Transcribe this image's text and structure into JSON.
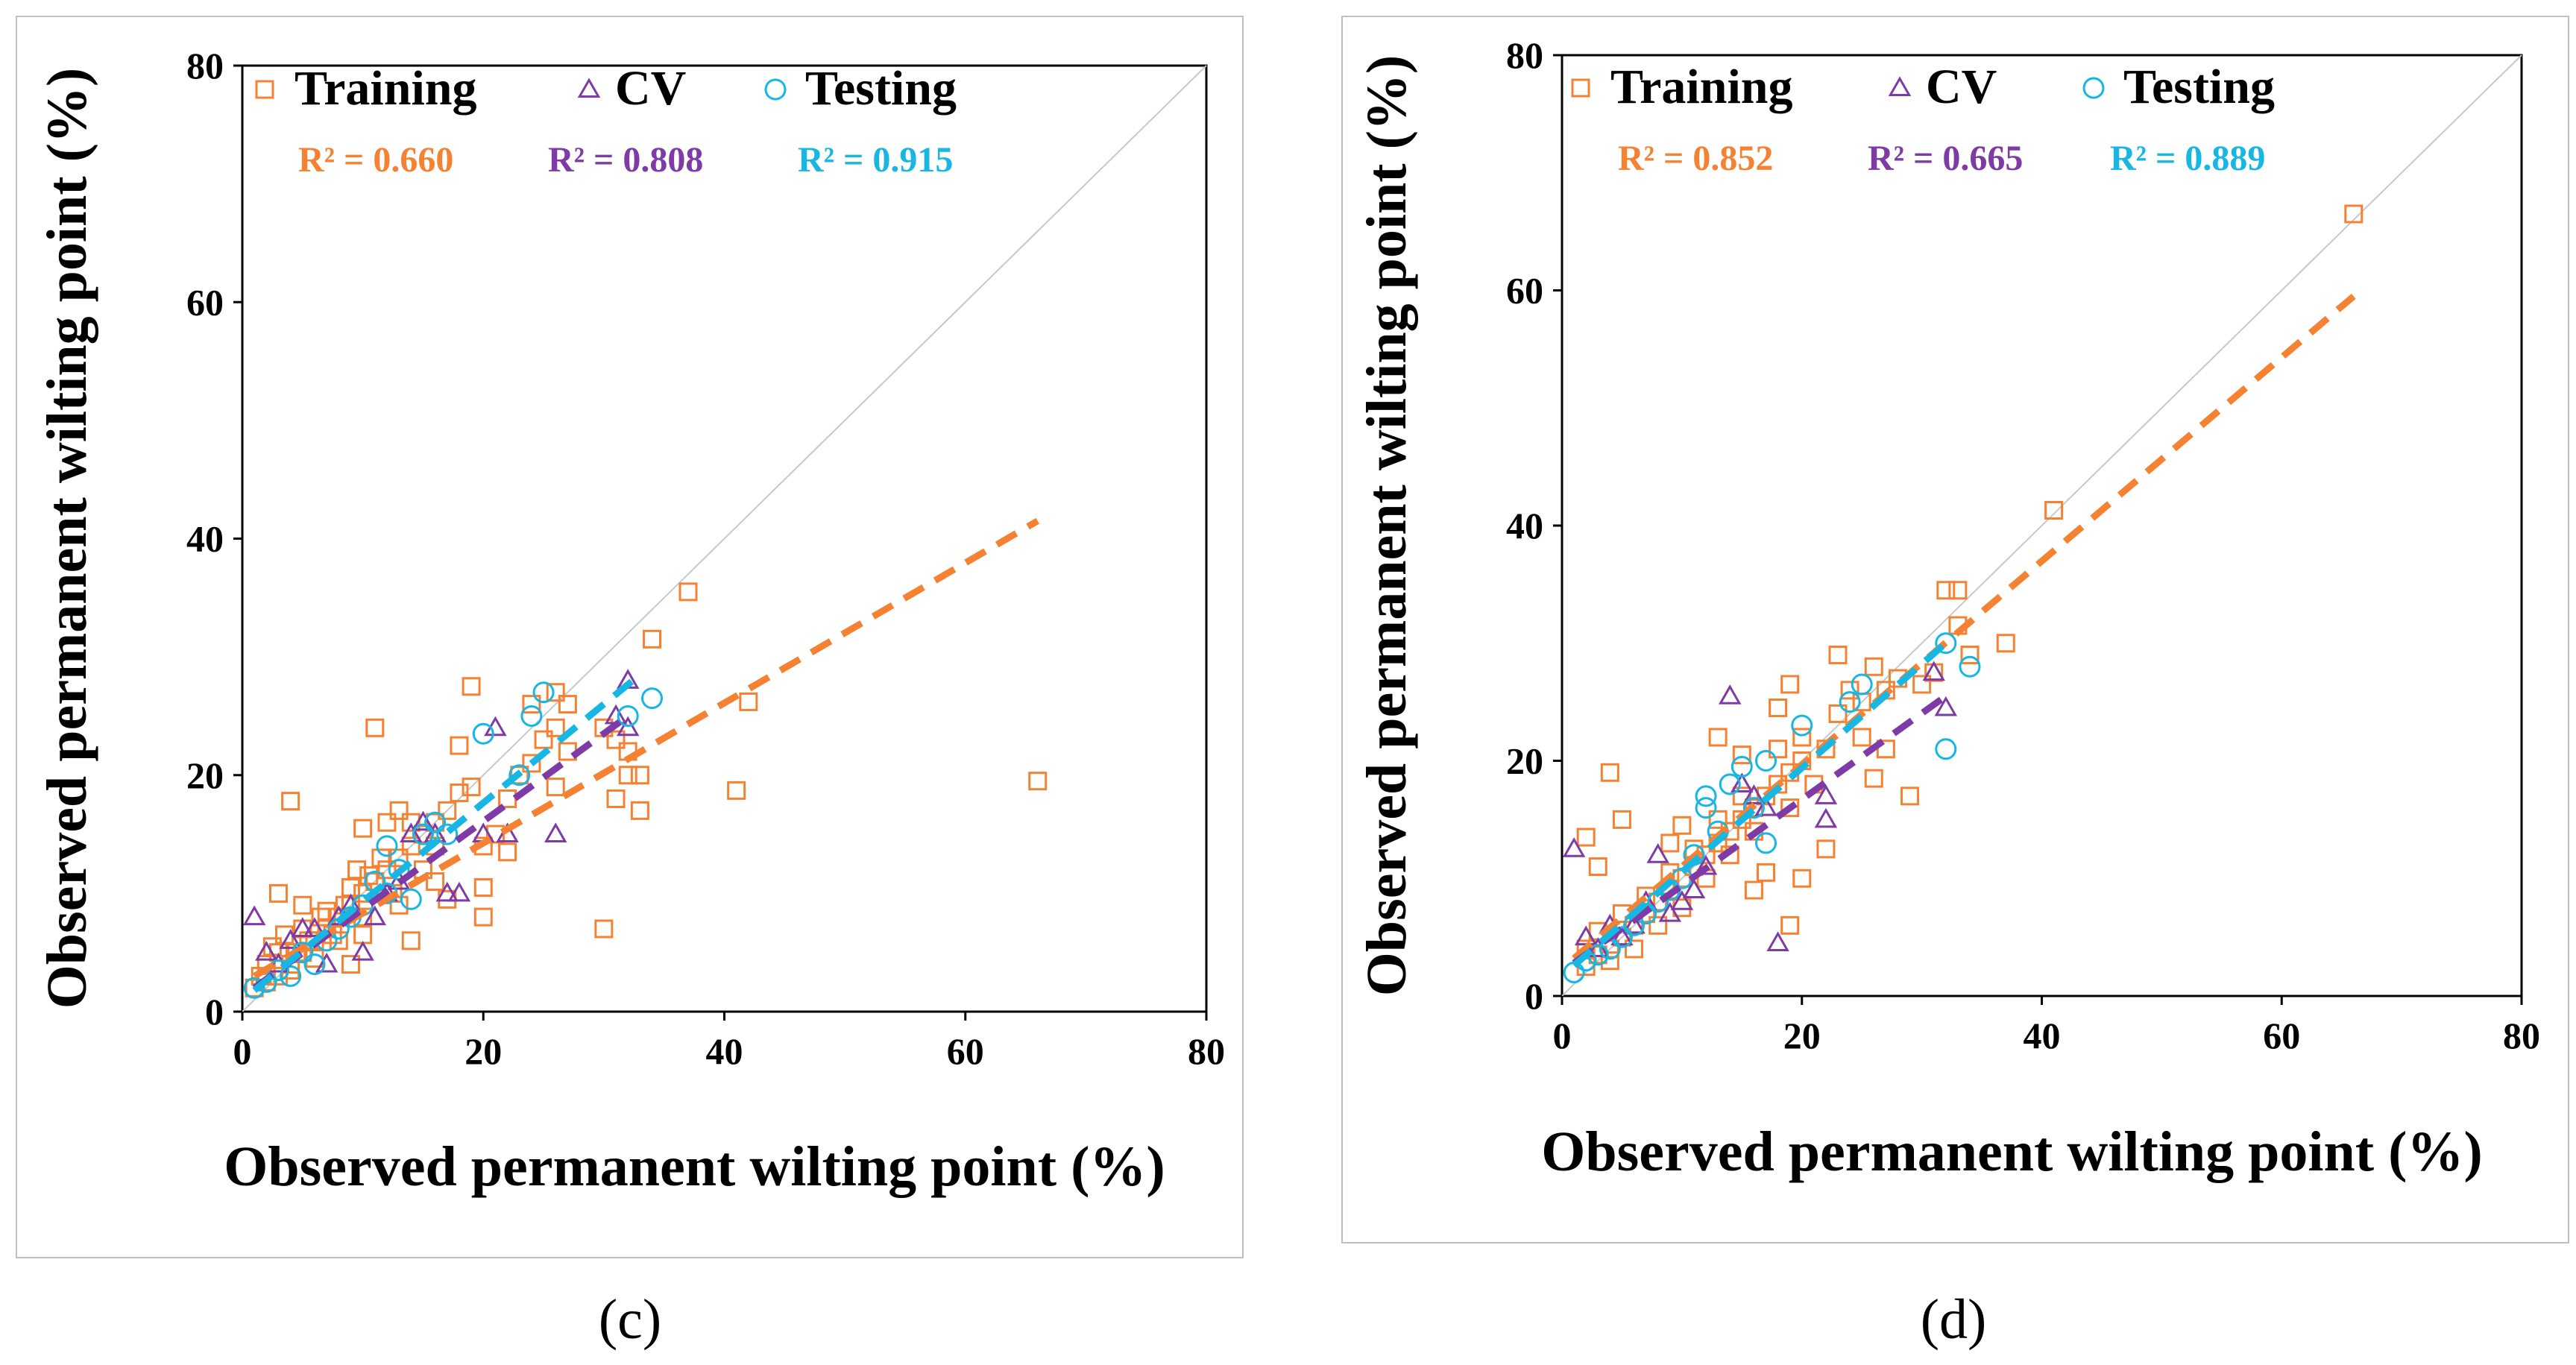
{
  "colors": {
    "training": "#F58232",
    "cv": "#7E3BA6",
    "testing": "#17B6E3",
    "identity": "#C8C8C8",
    "frame": "#BFBFBF"
  },
  "chart_data": [
    {
      "type": "scatter",
      "caption": "(c)",
      "xlabel": "Observed permanent wilting point (%)",
      "ylabel": "Observed permanent wilting point (%)",
      "xlim": [
        0,
        80
      ],
      "ylim": [
        0,
        80
      ],
      "xticks": [
        "0",
        "20",
        "40",
        "60",
        "80"
      ],
      "yticks": [
        "0",
        "20",
        "40",
        "60",
        "80"
      ],
      "legend": [
        "Training",
        "CV",
        "Testing"
      ],
      "r2_labels": [
        "R² = 0.660",
        "R² = 0.808",
        "R² = 0.915"
      ],
      "fits": [
        {
          "series": "Training",
          "from": [
            1,
            3.0
          ],
          "to": [
            66,
            41.5
          ]
        },
        {
          "series": "CV",
          "from": [
            1,
            2.0
          ],
          "to": [
            32,
            25.0
          ]
        },
        {
          "series": "Testing",
          "from": [
            1,
            1.8
          ],
          "to": [
            33,
            28.5
          ]
        }
      ],
      "series": [
        {
          "name": "Training",
          "marker": "square",
          "points": [
            [
              2,
              2.5
            ],
            [
              3,
              3
            ],
            [
              4,
              4
            ],
            [
              5,
              5
            ],
            [
              6,
              6
            ],
            [
              7,
              7
            ],
            [
              8,
              8
            ],
            [
              9,
              9
            ],
            [
              10,
              10
            ],
            [
              2,
              4
            ],
            [
              3,
              5
            ],
            [
              4,
              3.5
            ],
            [
              5,
              7
            ],
            [
              6,
              4.5
            ],
            [
              7,
              8.5
            ],
            [
              8,
              6
            ],
            [
              9,
              10.5
            ],
            [
              10,
              8
            ],
            [
              11,
              11
            ],
            [
              12,
              12
            ],
            [
              13,
              13
            ],
            [
              14,
              14
            ],
            [
              15,
              15
            ],
            [
              16,
              16
            ],
            [
              1,
              2
            ],
            [
              1.5,
              3
            ],
            [
              2.5,
              5.5
            ],
            [
              3.5,
              6.5
            ],
            [
              4.5,
              5
            ],
            [
              5.5,
              6
            ],
            [
              6.5,
              8
            ],
            [
              7.5,
              6.5
            ],
            [
              8.5,
              9
            ],
            [
              9.5,
              12
            ],
            [
              10.5,
              11.5
            ],
            [
              11.5,
              13
            ],
            [
              12.5,
              10
            ],
            [
              13,
              17
            ],
            [
              14,
              16
            ],
            [
              15,
              12
            ],
            [
              16,
              14
            ],
            [
              17,
              17
            ],
            [
              18,
              18.5
            ],
            [
              19,
              19
            ],
            [
              20,
              14
            ],
            [
              21,
              15
            ],
            [
              22,
              18
            ],
            [
              23,
              20
            ],
            [
              24,
              21
            ],
            [
              25,
              23
            ],
            [
              26,
              24
            ],
            [
              27,
              22
            ],
            [
              27,
              26
            ],
            [
              26,
              27
            ],
            [
              30,
              24
            ],
            [
              31,
              23
            ],
            [
              32,
              22
            ],
            [
              33,
              20
            ],
            [
              33,
              17
            ],
            [
              31,
              18
            ],
            [
              32,
              20
            ],
            [
              34,
              31.5
            ],
            [
              37,
              35.5
            ],
            [
              41,
              18.7
            ],
            [
              42,
              26.2
            ],
            [
              66,
              19.5
            ],
            [
              30,
              7
            ],
            [
              20,
              8
            ],
            [
              19,
              27.5
            ],
            [
              11,
              24
            ],
            [
              4,
              17.8
            ],
            [
              10,
              15.5
            ],
            [
              12,
              16
            ],
            [
              14,
              6
            ],
            [
              9,
              4
            ],
            [
              10,
              6.5
            ],
            [
              3,
              10
            ],
            [
              5,
              9
            ],
            [
              13,
              9
            ],
            [
              16,
              11
            ],
            [
              17,
              9.5
            ],
            [
              18,
              22.5
            ],
            [
              20,
              10.5
            ],
            [
              22,
              13.5
            ],
            [
              24,
              26
            ],
            [
              26,
              19
            ]
          ]
        },
        {
          "name": "CV",
          "marker": "triangle",
          "points": [
            [
              1,
              8
            ],
            [
              2,
              5
            ],
            [
              3,
              4
            ],
            [
              4,
              6
            ],
            [
              5,
              7
            ],
            [
              6,
              7
            ],
            [
              7,
              4
            ],
            [
              8,
              8
            ],
            [
              9,
              9
            ],
            [
              10,
              5
            ],
            [
              11,
              8
            ],
            [
              12,
              10
            ],
            [
              13,
              11
            ],
            [
              14,
              15
            ],
            [
              15,
              16
            ],
            [
              16,
              15
            ],
            [
              17,
              10
            ],
            [
              18,
              10
            ],
            [
              20,
              15
            ],
            [
              21,
              24
            ],
            [
              22,
              15
            ],
            [
              26,
              15
            ],
            [
              31,
              25
            ],
            [
              32,
              28
            ],
            [
              32,
              24
            ]
          ]
        },
        {
          "name": "Testing",
          "marker": "circle",
          "points": [
            [
              1,
              2
            ],
            [
              2,
              2.5
            ],
            [
              3,
              3.5
            ],
            [
              4,
              3
            ],
            [
              5,
              5
            ],
            [
              6,
              4
            ],
            [
              7,
              6
            ],
            [
              8,
              7
            ],
            [
              9,
              8
            ],
            [
              10,
              9
            ],
            [
              11,
              11
            ],
            [
              12,
              10
            ],
            [
              13,
              12
            ],
            [
              14,
              9.5
            ],
            [
              15,
              15
            ],
            [
              16,
              16
            ],
            [
              17,
              15
            ],
            [
              20,
              23.5
            ],
            [
              23,
              20
            ],
            [
              24,
              25
            ],
            [
              25,
              27
            ],
            [
              32,
              25
            ],
            [
              34,
              26.5
            ],
            [
              12,
              14
            ]
          ]
        }
      ]
    },
    {
      "type": "scatter",
      "caption": "(d)",
      "xlabel": "Observed permanent wilting point (%)",
      "ylabel": "Observed permanent wilting point (%)",
      "xlim": [
        0,
        80
      ],
      "ylim": [
        0,
        80
      ],
      "xticks": [
        "0",
        "20",
        "40",
        "60",
        "80"
      ],
      "yticks": [
        "0",
        "20",
        "40",
        "60",
        "80"
      ],
      "legend": [
        "Training",
        "CV",
        "Testing"
      ],
      "r2_labels": [
        "R² = 0.852",
        "R² = 0.665",
        "R² = 0.889"
      ],
      "fits": [
        {
          "series": "Training",
          "from": [
            1,
            3.2
          ],
          "to": [
            66,
            59.5
          ]
        },
        {
          "series": "CV",
          "from": [
            1,
            2.8
          ],
          "to": [
            32,
            25.5
          ]
        },
        {
          "series": "Testing",
          "from": [
            1,
            2.6
          ],
          "to": [
            32,
            30.0
          ]
        }
      ],
      "series": [
        {
          "name": "Training",
          "marker": "square",
          "points": [
            [
              2,
              2.5
            ],
            [
              3,
              3.5
            ],
            [
              4,
              4
            ],
            [
              5,
              5
            ],
            [
              6,
              6
            ],
            [
              7,
              7
            ],
            [
              8,
              8
            ],
            [
              9,
              9
            ],
            [
              10,
              10
            ],
            [
              11,
              11
            ],
            [
              12,
              12
            ],
            [
              13,
              13
            ],
            [
              14,
              14
            ],
            [
              15,
              15
            ],
            [
              16,
              16
            ],
            [
              17,
              17
            ],
            [
              18,
              18
            ],
            [
              19,
              19
            ],
            [
              20,
              20
            ],
            [
              2,
              4
            ],
            [
              3,
              5.5
            ],
            [
              4,
              3
            ],
            [
              5,
              7
            ],
            [
              6,
              4
            ],
            [
              7,
              8.5
            ],
            [
              8,
              6
            ],
            [
              9,
              10.5
            ],
            [
              10,
              7.5
            ],
            [
              11,
              12.5
            ],
            [
              12,
              10
            ],
            [
              13,
              15
            ],
            [
              14,
              12
            ],
            [
              15,
              17
            ],
            [
              16,
              14
            ],
            [
              18,
              21
            ],
            [
              19,
              16
            ],
            [
              20,
              22
            ],
            [
              21,
              18
            ],
            [
              22,
              21
            ],
            [
              23,
              24
            ],
            [
              24,
              26
            ],
            [
              25,
              25
            ],
            [
              26,
              28
            ],
            [
              27,
              26
            ],
            [
              28,
              27
            ],
            [
              30,
              26.5
            ],
            [
              31,
              27.5
            ],
            [
              32,
              34.5
            ],
            [
              33,
              34.5
            ],
            [
              33,
              31.5
            ],
            [
              34,
              29
            ],
            [
              37,
              30
            ],
            [
              41,
              41.3
            ],
            [
              66,
              66.5
            ],
            [
              4,
              19
            ],
            [
              2,
              13.5
            ],
            [
              3,
              11
            ],
            [
              5,
              15
            ],
            [
              13,
              22
            ],
            [
              15,
              20.5
            ],
            [
              18,
              24.5
            ],
            [
              19,
              26.5
            ],
            [
              23,
              29
            ],
            [
              26,
              18.5
            ],
            [
              29,
              17
            ],
            [
              19,
              6
            ],
            [
              20,
              10
            ],
            [
              16,
              9
            ],
            [
              17,
              10.5
            ],
            [
              22,
              12.5
            ],
            [
              9,
              13
            ],
            [
              10,
              14.5
            ],
            [
              25,
              22
            ],
            [
              27,
              21
            ]
          ]
        },
        {
          "name": "CV",
          "marker": "triangle",
          "points": [
            [
              1,
              12.5
            ],
            [
              2,
              5
            ],
            [
              3,
              4
            ],
            [
              4,
              6
            ],
            [
              5,
              5
            ],
            [
              6,
              6
            ],
            [
              7,
              8
            ],
            [
              8,
              12
            ],
            [
              9,
              7
            ],
            [
              10,
              8
            ],
            [
              11,
              9
            ],
            [
              12,
              11
            ],
            [
              14,
              25.5
            ],
            [
              15,
              18
            ],
            [
              16,
              17
            ],
            [
              17,
              16
            ],
            [
              18,
              4.5
            ],
            [
              22,
              15
            ],
            [
              22,
              17
            ],
            [
              32,
              24.5
            ],
            [
              31,
              27.5
            ]
          ]
        },
        {
          "name": "Testing",
          "marker": "circle",
          "points": [
            [
              1,
              2
            ],
            [
              2,
              3
            ],
            [
              3,
              3.5
            ],
            [
              4,
              4
            ],
            [
              5,
              5
            ],
            [
              6,
              6
            ],
            [
              7,
              7
            ],
            [
              8,
              8
            ],
            [
              9,
              9
            ],
            [
              10,
              10
            ],
            [
              11,
              12
            ],
            [
              12,
              16
            ],
            [
              12,
              17
            ],
            [
              13,
              14
            ],
            [
              14,
              18
            ],
            [
              15,
              19.5
            ],
            [
              16,
              16
            ],
            [
              17,
              20
            ],
            [
              17,
              13
            ],
            [
              20,
              23
            ],
            [
              24,
              25
            ],
            [
              25,
              26.5
            ],
            [
              32,
              30
            ],
            [
              32,
              21
            ],
            [
              34,
              28
            ]
          ]
        }
      ]
    }
  ]
}
